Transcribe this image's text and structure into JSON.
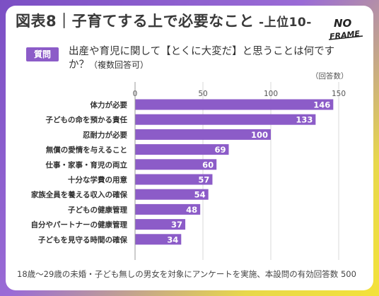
{
  "title": {
    "main": "図表8｜子育てする上で必要なこと",
    "sub": " -上位10-"
  },
  "logo": {
    "text_top": "NO",
    "text_bottom": "FRAME"
  },
  "question": {
    "badge": "質問",
    "text": "出産や育児に関して【とくに大変だ】と思うことは何ですか？",
    "note": "（複数回答可）"
  },
  "unit_label": "（回答数）",
  "footnote": "18歳〜29歳の未婚・子ども無しの男女を対象にアンケートを実施、本設問の有効回答数 500",
  "colors": {
    "bar": "#8c5cc8",
    "grid": "#d9d9d9",
    "label": "#333333",
    "value_text": "#ffffff"
  },
  "chart_data": {
    "type": "bar",
    "orientation": "horizontal",
    "categories": [
      "体力が必要",
      "子どもの命を預かる責任",
      "忍耐力が必要",
      "無償の愛情を与えること",
      "仕事・家事・育児の両立",
      "十分な学費の用意",
      "家族全員を養える収入の確保",
      "子どもの健康管理",
      "自分やパートナーの健康管理",
      "子どもを見守る時間の確保"
    ],
    "values": [
      146,
      133,
      100,
      69,
      60,
      57,
      54,
      48,
      37,
      34
    ],
    "xlim": [
      0,
      150
    ],
    "xticks": [
      0,
      50,
      100,
      150
    ],
    "grid": true
  }
}
